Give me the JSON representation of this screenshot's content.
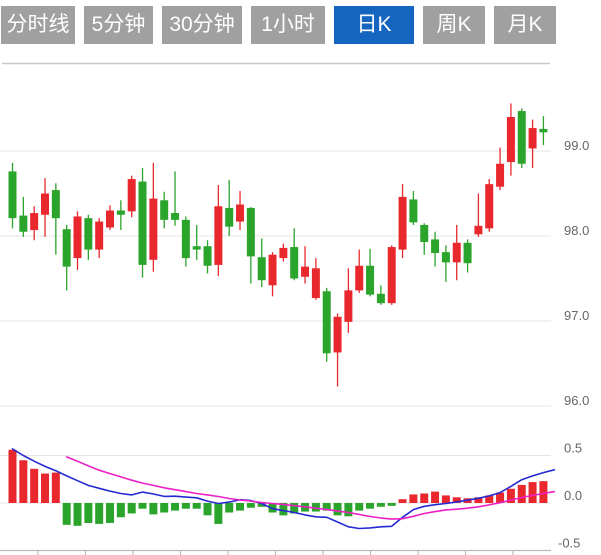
{
  "toolbar": {
    "tabs": [
      {
        "id": "tab-timeshare",
        "label": "分时线",
        "active": false
      },
      {
        "id": "tab-5min",
        "label": "5分钟",
        "active": false
      },
      {
        "id": "tab-30min",
        "label": "30分钟",
        "active": false
      },
      {
        "id": "tab-1hour",
        "label": "1小时",
        "active": false
      },
      {
        "id": "tab-daily-k",
        "label": "日K",
        "active": true
      },
      {
        "id": "tab-weekly-k",
        "label": "周K",
        "active": false
      },
      {
        "id": "tab-monthly-k",
        "label": "月K",
        "active": false
      }
    ],
    "colors": {
      "active_bg": "#1565c0",
      "inactive_bg": "#a0a0a0",
      "text": "#ffffff"
    }
  },
  "chart_data": {
    "type": "candlestick",
    "title": "",
    "legend_position": "none",
    "grid": true,
    "colors": {
      "up": "#e9282d",
      "down": "#2aa42a",
      "dif_line": "#2629d2",
      "dea_line": "#ee1fc5",
      "grid": "#e4e4e4",
      "border": "#c8c8c8",
      "axis": "#bbbbbb",
      "label": "#666666"
    },
    "price_pane": {
      "y_ticks": [
        99.0,
        98.0,
        97.0,
        96.0
      ],
      "ylim": [
        95.9,
        99.7
      ]
    },
    "macd_pane": {
      "y_ticks": [
        0.5,
        0.0,
        -0.5
      ],
      "ylim": [
        -0.5,
        0.5
      ]
    },
    "candles_ohlc": [
      [
        98.76,
        98.86,
        98.09,
        98.21
      ],
      [
        98.24,
        98.46,
        97.99,
        98.05
      ],
      [
        98.07,
        98.35,
        97.95,
        98.27
      ],
      [
        98.25,
        98.68,
        97.99,
        98.5
      ],
      [
        98.54,
        98.62,
        97.78,
        98.21
      ],
      [
        98.08,
        98.13,
        97.36,
        97.64
      ],
      [
        97.74,
        98.29,
        97.6,
        98.23
      ],
      [
        98.21,
        98.25,
        97.72,
        97.84
      ],
      [
        97.84,
        98.21,
        97.74,
        98.17
      ],
      [
        98.1,
        98.36,
        98.07,
        98.3
      ],
      [
        98.3,
        98.42,
        98.07,
        98.25
      ],
      [
        98.29,
        98.71,
        98.22,
        98.67
      ],
      [
        98.64,
        98.8,
        97.51,
        97.66
      ],
      [
        97.72,
        98.86,
        97.58,
        98.44
      ],
      [
        98.42,
        98.52,
        98.09,
        98.19
      ],
      [
        98.27,
        98.76,
        98.12,
        98.19
      ],
      [
        98.19,
        98.23,
        97.64,
        97.74
      ],
      [
        97.88,
        98.13,
        97.72,
        97.84
      ],
      [
        97.88,
        97.95,
        97.56,
        97.65
      ],
      [
        97.66,
        98.6,
        97.53,
        98.35
      ],
      [
        98.33,
        98.66,
        98.0,
        98.11
      ],
      [
        98.17,
        98.53,
        98.07,
        98.37
      ],
      [
        98.33,
        98.34,
        97.44,
        97.76
      ],
      [
        97.75,
        97.97,
        97.4,
        97.48
      ],
      [
        97.42,
        97.81,
        97.29,
        97.78
      ],
      [
        97.74,
        97.91,
        97.7,
        97.86
      ],
      [
        97.87,
        98.09,
        97.48,
        97.5
      ],
      [
        97.52,
        97.88,
        97.44,
        97.64
      ],
      [
        97.27,
        97.74,
        97.25,
        97.62
      ],
      [
        97.35,
        97.39,
        96.52,
        96.62
      ],
      [
        96.63,
        97.09,
        96.23,
        97.05
      ],
      [
        96.99,
        97.62,
        96.86,
        97.36
      ],
      [
        97.36,
        97.84,
        97.33,
        97.65
      ],
      [
        97.65,
        97.85,
        97.29,
        97.31
      ],
      [
        97.32,
        97.42,
        97.19,
        97.21
      ],
      [
        97.21,
        97.89,
        97.19,
        97.87
      ],
      [
        97.84,
        98.61,
        97.74,
        98.46
      ],
      [
        98.43,
        98.53,
        98.13,
        98.16
      ],
      [
        98.13,
        98.15,
        97.78,
        97.93
      ],
      [
        97.96,
        98.05,
        97.64,
        97.8
      ],
      [
        97.81,
        97.89,
        97.46,
        97.69
      ],
      [
        97.69,
        98.13,
        97.48,
        97.92
      ],
      [
        97.92,
        97.96,
        97.57,
        97.68
      ],
      [
        98.02,
        98.5,
        97.99,
        98.12
      ],
      [
        98.09,
        98.67,
        98.05,
        98.61
      ],
      [
        98.58,
        99.04,
        98.54,
        98.85
      ],
      [
        98.87,
        99.56,
        98.71,
        99.4
      ],
      [
        99.47,
        99.5,
        98.8,
        98.85
      ],
      [
        99.03,
        99.37,
        98.8,
        99.27
      ],
      [
        99.26,
        99.41,
        99.07,
        99.22
      ]
    ],
    "macd": {
      "histogram": [
        0.56,
        0.45,
        0.36,
        0.31,
        0.32,
        -0.23,
        -0.24,
        -0.21,
        -0.22,
        -0.21,
        -0.15,
        -0.11,
        -0.06,
        -0.12,
        -0.1,
        -0.08,
        -0.06,
        -0.06,
        -0.13,
        -0.22,
        -0.1,
        -0.08,
        -0.05,
        -0.04,
        -0.1,
        -0.13,
        -0.11,
        -0.09,
        -0.09,
        -0.08,
        -0.13,
        -0.14,
        -0.08,
        -0.06,
        -0.04,
        -0.03,
        0.04,
        0.09,
        0.1,
        0.12,
        0.08,
        0.06,
        0.05,
        0.06,
        0.08,
        0.11,
        0.15,
        0.19,
        0.22,
        0.23
      ],
      "dif": [
        0.57,
        0.5,
        0.44,
        0.385,
        0.34,
        0.285,
        0.235,
        0.185,
        0.155,
        0.125,
        0.1,
        0.085,
        0.115,
        0.095,
        0.07,
        0.072,
        0.062,
        0.055,
        0.02,
        -0.005,
        0.01,
        0.035,
        0.025,
        -0.005,
        -0.06,
        -0.08,
        -0.1,
        -0.125,
        -0.145,
        -0.15,
        -0.2,
        -0.25,
        -0.268,
        -0.262,
        -0.25,
        -0.245,
        -0.15,
        -0.07,
        -0.035,
        -0.018,
        -0.005,
        0.012,
        0.03,
        0.05,
        0.075,
        0.11,
        0.175,
        0.245,
        0.285,
        0.32,
        0.35
      ],
      "dea_start_index": 5,
      "dea": [
        0.485,
        0.44,
        0.39,
        0.345,
        0.31,
        0.275,
        0.24,
        0.21,
        0.185,
        0.16,
        0.14,
        0.12,
        0.1,
        0.085,
        0.068,
        0.047,
        0.032,
        0.02,
        0.005,
        -0.005,
        -0.015,
        -0.028,
        -0.04,
        -0.055,
        -0.07,
        -0.085,
        -0.1,
        -0.12,
        -0.142,
        -0.158,
        -0.17,
        -0.165,
        -0.14,
        -0.11,
        -0.09,
        -0.073,
        -0.065,
        -0.055,
        -0.04,
        -0.02,
        0.003,
        0.03,
        0.058,
        0.08,
        0.1,
        0.12
      ]
    }
  }
}
